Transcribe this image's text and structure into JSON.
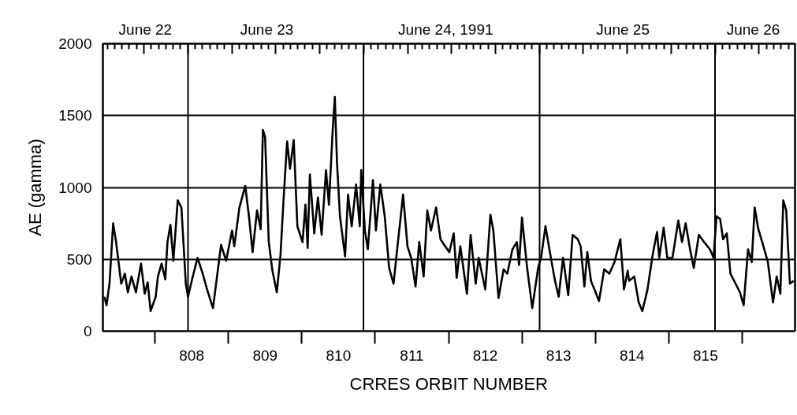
{
  "chart_data": {
    "type": "line",
    "xlabel": "CRRES ORBIT NUMBER",
    "ylabel": "AE (gamma)",
    "xlim": [
      806.79,
      816.22
    ],
    "ylim": [
      0,
      2000
    ],
    "yticks": [
      0,
      500,
      1000,
      1500,
      2000
    ],
    "xticks": [
      {
        "value": 807.5,
        "label": null
      },
      808,
      {
        "value": 808.5,
        "label": null
      },
      809,
      {
        "value": 809.5,
        "label": null
      },
      810,
      {
        "value": 810.5,
        "label": null
      },
      811,
      {
        "value": 811.5,
        "label": null
      },
      812,
      {
        "value": 812.5,
        "label": null
      },
      813,
      {
        "value": 813.5,
        "label": null
      },
      814,
      {
        "value": 814.5,
        "label": null
      },
      815,
      {
        "value": 815.5,
        "label": null
      }
    ],
    "x2lim": [
      "1991-06-22T12:24",
      "1991-06-26T10:54"
    ],
    "x2ticks": [
      {
        "value": "1991-06-22T13:00",
        "label": null
      },
      {
        "value": "1991-06-22T14:00",
        "label": null
      },
      {
        "value": "1991-06-22T15:00",
        "label": null
      },
      {
        "value": "1991-06-22T16:00",
        "label": null
      },
      {
        "value": "1991-06-22T17:00",
        "label": null
      },
      {
        "value": "1991-06-22T18:00",
        "label": null
      },
      {
        "value": "1991-06-22T18:12",
        "label": "June 22"
      },
      {
        "value": "1991-06-22T19:00",
        "label": null
      },
      {
        "value": "1991-06-22T20:00",
        "label": null
      },
      {
        "value": "1991-06-22T21:00",
        "label": null
      },
      {
        "value": "1991-06-22T22:00",
        "label": null
      },
      {
        "value": "1991-06-22T23:00",
        "label": null
      },
      {
        "value": "1991-06-23T00:00",
        "label": null
      },
      {
        "value": "1991-06-23T01:00",
        "label": null
      },
      {
        "value": "1991-06-23T02:00",
        "label": null
      },
      {
        "value": "1991-06-23T03:00",
        "label": null
      },
      {
        "value": "1991-06-23T04:00",
        "label": null
      },
      {
        "value": "1991-06-23T05:00",
        "label": null
      },
      {
        "value": "1991-06-23T06:00",
        "label": null
      },
      {
        "value": "1991-06-23T07:00",
        "label": null
      },
      {
        "value": "1991-06-23T08:00",
        "label": null
      },
      {
        "value": "1991-06-23T09:00",
        "label": null
      },
      {
        "value": "1991-06-23T10:00",
        "label": null
      },
      {
        "value": "1991-06-23T10:48",
        "label": "June 23"
      },
      {
        "value": "1991-06-23T11:00",
        "label": null
      },
      {
        "value": "1991-06-23T12:00",
        "label": null
      },
      {
        "value": "1991-06-23T13:00",
        "label": null
      },
      {
        "value": "1991-06-23T14:00",
        "label": null
      },
      {
        "value": "1991-06-23T15:00",
        "label": null
      },
      {
        "value": "1991-06-23T16:00",
        "label": null
      },
      {
        "value": "1991-06-23T17:00",
        "label": null
      },
      {
        "value": "1991-06-23T18:00",
        "label": null
      },
      {
        "value": "1991-06-23T19:00",
        "label": null
      },
      {
        "value": "1991-06-23T20:00",
        "label": null
      },
      {
        "value": "1991-06-23T21:00",
        "label": null
      },
      {
        "value": "1991-06-23T22:00",
        "label": null
      },
      {
        "value": "1991-06-23T23:00",
        "label": null
      },
      {
        "value": "1991-06-24T00:00",
        "label": null
      },
      {
        "value": "1991-06-24T01:00",
        "label": null
      },
      {
        "value": "1991-06-24T02:00",
        "label": null
      },
      {
        "value": "1991-06-24T03:00",
        "label": null
      },
      {
        "value": "1991-06-24T04:00",
        "label": null
      },
      {
        "value": "1991-06-24T05:00",
        "label": null
      },
      {
        "value": "1991-06-24T06:00",
        "label": null
      },
      {
        "value": "1991-06-24T07:00",
        "label": null
      },
      {
        "value": "1991-06-24T08:00",
        "label": null
      },
      {
        "value": "1991-06-24T09:00",
        "label": null
      },
      {
        "value": "1991-06-24T10:00",
        "label": null
      },
      {
        "value": "1991-06-24T11:00",
        "label": null
      },
      {
        "value": "1991-06-24T11:12",
        "label": "June 24, 1991"
      },
      {
        "value": "1991-06-24T12:00",
        "label": null
      },
      {
        "value": "1991-06-24T13:00",
        "label": null
      },
      {
        "value": "1991-06-24T14:00",
        "label": null
      },
      {
        "value": "1991-06-24T15:00",
        "label": null
      },
      {
        "value": "1991-06-24T16:00",
        "label": null
      },
      {
        "value": "1991-06-24T17:00",
        "label": null
      },
      {
        "value": "1991-06-24T18:00",
        "label": null
      },
      {
        "value": "1991-06-24T19:00",
        "label": null
      },
      {
        "value": "1991-06-24T20:00",
        "label": null
      },
      {
        "value": "1991-06-24T21:00",
        "label": null
      },
      {
        "value": "1991-06-24T22:00",
        "label": null
      },
      {
        "value": "1991-06-24T23:00",
        "label": null
      },
      {
        "value": "1991-06-25T00:00",
        "label": null
      },
      {
        "value": "1991-06-25T01:00",
        "label": null
      },
      {
        "value": "1991-06-25T02:00",
        "label": null
      },
      {
        "value": "1991-06-25T03:00",
        "label": null
      },
      {
        "value": "1991-06-25T04:00",
        "label": null
      },
      {
        "value": "1991-06-25T05:00",
        "label": null
      },
      {
        "value": "1991-06-25T06:00",
        "label": null
      },
      {
        "value": "1991-06-25T07:00",
        "label": null
      },
      {
        "value": "1991-06-25T08:00",
        "label": null
      },
      {
        "value": "1991-06-25T09:00",
        "label": null
      },
      {
        "value": "1991-06-25T10:00",
        "label": null
      },
      {
        "value": "1991-06-25T11:00",
        "label": null
      },
      {
        "value": "1991-06-25T11:24",
        "label": "June 25"
      },
      {
        "value": "1991-06-25T12:00",
        "label": null
      },
      {
        "value": "1991-06-25T13:00",
        "label": null
      },
      {
        "value": "1991-06-25T14:00",
        "label": null
      },
      {
        "value": "1991-06-25T15:00",
        "label": null
      },
      {
        "value": "1991-06-25T16:00",
        "label": null
      },
      {
        "value": "1991-06-25T17:00",
        "label": null
      },
      {
        "value": "1991-06-25T18:00",
        "label": null
      },
      {
        "value": "1991-06-25T19:00",
        "label": null
      },
      {
        "value": "1991-06-25T20:00",
        "label": null
      },
      {
        "value": "1991-06-25T21:00",
        "label": null
      },
      {
        "value": "1991-06-25T22:00",
        "label": null
      },
      {
        "value": "1991-06-25T23:00",
        "label": null
      },
      {
        "value": "1991-06-26T00:00",
        "label": null
      },
      {
        "value": "1991-06-26T01:00",
        "label": null
      },
      {
        "value": "1991-06-26T02:00",
        "label": null
      },
      {
        "value": "1991-06-26T03:00",
        "label": null
      },
      {
        "value": "1991-06-26T04:00",
        "label": null
      },
      {
        "value": "1991-06-26T05:00",
        "label": null
      },
      {
        "value": "1991-06-26T05:12",
        "label": "June 26"
      },
      {
        "value": "1991-06-26T06:00",
        "label": null
      },
      {
        "value": "1991-06-26T07:00",
        "label": null
      },
      {
        "value": "1991-06-26T08:00",
        "label": null
      },
      {
        "value": "1991-06-26T09:00",
        "label": null
      },
      {
        "value": "1991-06-26T10:00",
        "label": null
      }
    ],
    "grid": "y",
    "ref_lines": [
      {
        "axis": "x",
        "value": 807.95,
        "label": null,
        "color": "#000000"
      },
      {
        "axis": "x",
        "value": 810.34,
        "label": null,
        "color": "#000000"
      },
      {
        "axis": "x",
        "value": 812.74,
        "label": null,
        "color": "#000000"
      },
      {
        "axis": "x",
        "value": 815.13,
        "label": null,
        "color": "#000000"
      }
    ],
    "x": [
      806.81,
      806.84,
      806.88,
      806.93,
      806.97,
      807.04,
      807.09,
      807.13,
      807.18,
      807.24,
      807.31,
      807.36,
      807.4,
      807.44,
      807.51,
      807.54,
      807.59,
      807.64,
      807.67,
      807.71,
      807.75,
      807.81,
      807.86,
      807.92,
      807.95,
      808.01,
      808.08,
      808.15,
      808.21,
      808.29,
      808.37,
      808.4,
      808.47,
      808.55,
      808.58,
      808.65,
      808.73,
      808.78,
      808.83,
      808.89,
      808.94,
      808.97,
      809.0,
      809.05,
      809.1,
      809.16,
      809.21,
      809.25,
      809.3,
      809.34,
      809.39,
      809.44,
      809.51,
      809.55,
      809.58,
      809.61,
      809.67,
      809.72,
      809.77,
      809.83,
      809.87,
      809.92,
      809.95,
      809.98,
      810.02,
      810.09,
      810.13,
      810.18,
      810.24,
      810.29,
      810.31,
      810.36,
      810.4,
      810.47,
      810.51,
      810.57,
      810.63,
      810.69,
      810.75,
      810.81,
      810.88,
      810.94,
      810.99,
      811.05,
      811.1,
      811.16,
      811.21,
      811.26,
      811.33,
      811.39,
      811.44,
      811.51,
      811.57,
      811.61,
      811.66,
      811.75,
      811.8,
      811.87,
      811.91,
      812.0,
      812.07,
      812.11,
      812.18,
      812.25,
      812.3,
      812.37,
      812.43,
      812.46,
      812.5,
      812.57,
      812.64,
      812.72,
      812.76,
      812.82,
      812.88,
      812.95,
      813.0,
      813.06,
      813.13,
      813.19,
      813.26,
      813.3,
      813.35,
      813.39,
      813.44,
      813.55,
      813.62,
      813.69,
      813.76,
      813.84,
      813.89,
      813.94,
      813.96,
      814.03,
      814.09,
      814.14,
      814.21,
      814.28,
      814.34,
      814.37,
      814.43,
      814.48,
      814.55,
      814.63,
      814.68,
      814.73,
      814.79,
      814.84,
      814.91,
      814.98,
      815.06,
      815.11,
      815.15,
      815.2,
      815.24,
      815.29,
      815.34,
      815.41,
      815.47,
      815.52,
      815.58,
      815.63,
      815.67,
      815.72,
      815.79,
      815.85,
      815.92,
      815.97,
      816.02,
      816.06,
      816.1,
      816.15,
      816.2
    ],
    "series": [
      {
        "color": "#000000",
        "values": [
          240,
          180,
          330,
          750,
          620,
          330,
          400,
          270,
          380,
          270,
          470,
          260,
          340,
          140,
          240,
          380,
          470,
          360,
          620,
          740,
          490,
          910,
          860,
          330,
          240,
          370,
          510,
          400,
          290,
          160,
          480,
          600,
          490,
          700,
          590,
          860,
          1010,
          800,
          550,
          840,
          710,
          1400,
          1350,
          620,
          420,
          270,
          530,
          900,
          1320,
          1130,
          1330,
          730,
          620,
          880,
          580,
          1090,
          680,
          930,
          670,
          1120,
          880,
          1390,
          1630,
          1170,
          800,
          520,
          950,
          730,
          1020,
          730,
          1120,
          700,
          570,
          1050,
          700,
          1020,
          800,
          440,
          330,
          620,
          950,
          590,
          510,
          310,
          620,
          380,
          840,
          700,
          860,
          640,
          600,
          550,
          680,
          370,
          590,
          260,
          670,
          330,
          510,
          290,
          810,
          700,
          230,
          430,
          400,
          570,
          620,
          460,
          790,
          440,
          160,
          440,
          510,
          730,
          550,
          350,
          240,
          510,
          250,
          670,
          640,
          590,
          310,
          550,
          350,
          210,
          430,
          400,
          480,
          640,
          290,
          420,
          350,
          380,
          200,
          140,
          290,
          530,
          690,
          510,
          720,
          510,
          510,
          770,
          620,
          750,
          570,
          440,
          670,
          620,
          570,
          510,
          800,
          780,
          640,
          680,
          400,
          330,
          270,
          180,
          570,
          480,
          860,
          710,
          590,
          480,
          200,
          380,
          260,
          910,
          840,
          330,
          350
        ]
      }
    ]
  }
}
